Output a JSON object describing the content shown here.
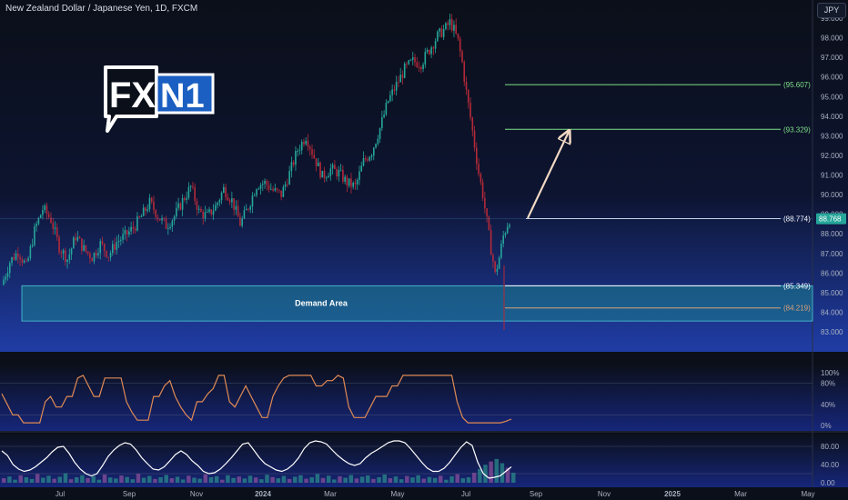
{
  "header": {
    "title": "New Zealand Dollar / Japanese Yen, 1D, FXCM",
    "currency_button": "JPY"
  },
  "logo": {
    "text_left": "FX",
    "text_right": "N1"
  },
  "annotations": {
    "zone_label": "Demand Area"
  },
  "colors": {
    "background": "#0b0f19",
    "gradient_bottom": "#1f3da6",
    "bull": "#26a69a",
    "bear": "#b52a3a",
    "zone_fill": "#1b7f8f",
    "level_green": "#7ee08a",
    "level_white": "#ffffff",
    "level_orange": "#d9a07c",
    "osc1_line": "#e08a54",
    "osc2_line": "#ffffff",
    "logo_blue": "#1b5fc2"
  },
  "chart_data": [
    {
      "type": "candlestick",
      "title": "New Zealand Dollar / Japanese Yen, 1D, FXCM",
      "x_tick_labels": [
        "Jul",
        "Sep",
        "Nov",
        "2024",
        "Mar",
        "May",
        "Jul",
        "Sep",
        "Nov",
        "2025",
        "Mar",
        "May"
      ],
      "y_tick_labels": [
        "99.000",
        "98.000",
        "97.000",
        "96.000",
        "95.000",
        "94.000",
        "93.000",
        "92.000",
        "91.000",
        "90.000",
        "89.000",
        "88.000",
        "87.000",
        "86.000",
        "85.000",
        "84.000",
        "83.000"
      ],
      "ylim": [
        82.6,
        99.8
      ],
      "price_path": [
        [
          0,
          85.4
        ],
        [
          4,
          86.6
        ],
        [
          8,
          87.1
        ],
        [
          12,
          86.3
        ],
        [
          16,
          88.2
        ],
        [
          20,
          89.3
        ],
        [
          24,
          88.7
        ],
        [
          28,
          87.3
        ],
        [
          32,
          86.7
        ],
        [
          36,
          87.9
        ],
        [
          40,
          87.2
        ],
        [
          44,
          86.8
        ],
        [
          48,
          87.5
        ],
        [
          52,
          86.9
        ],
        [
          56,
          87.6
        ],
        [
          60,
          87.9
        ],
        [
          64,
          88.3
        ],
        [
          68,
          88.9
        ],
        [
          72,
          89.6
        ],
        [
          76,
          88.9
        ],
        [
          80,
          88.4
        ],
        [
          84,
          88.9
        ],
        [
          88,
          89.7
        ],
        [
          92,
          90.4
        ],
        [
          96,
          89.1
        ],
        [
          100,
          88.9
        ],
        [
          104,
          89.4
        ],
        [
          108,
          90.3
        ],
        [
          112,
          89.7
        ],
        [
          116,
          88.5
        ],
        [
          120,
          89.4
        ],
        [
          124,
          90.5
        ],
        [
          128,
          90.6
        ],
        [
          132,
          90.2
        ],
        [
          136,
          90.0
        ],
        [
          140,
          91.1
        ],
        [
          144,
          92.3
        ],
        [
          148,
          93.0
        ],
        [
          152,
          91.9
        ],
        [
          156,
          90.9
        ],
        [
          160,
          91.3
        ],
        [
          164,
          91.1
        ],
        [
          168,
          90.6
        ],
        [
          172,
          90.4
        ],
        [
          176,
          91.7
        ],
        [
          180,
          92.2
        ],
        [
          184,
          93.4
        ],
        [
          188,
          94.8
        ],
        [
          192,
          95.6
        ],
        [
          196,
          96.4
        ],
        [
          200,
          96.8
        ],
        [
          204,
          96.7
        ],
        [
          208,
          97.4
        ],
        [
          212,
          98.1
        ],
        [
          216,
          98.5
        ],
        [
          218,
          98.8
        ],
        [
          220,
          98.4
        ],
        [
          222,
          97.8
        ],
        [
          224,
          96.7
        ],
        [
          226,
          95.2
        ],
        [
          228,
          93.9
        ],
        [
          230,
          92.5
        ],
        [
          232,
          91.1
        ],
        [
          234,
          90.0
        ],
        [
          236,
          88.6
        ],
        [
          238,
          87.2
        ],
        [
          239,
          86.6
        ],
        [
          240,
          85.9
        ],
        [
          242,
          86.8
        ],
        [
          244,
          87.9
        ],
        [
          246,
          88.5
        ],
        [
          247,
          88.76
        ]
      ],
      "levels": [
        {
          "label": "(95.607)",
          "value": 95.607,
          "color": "#7ee08a"
        },
        {
          "label": "(93.329)",
          "value": 93.329,
          "color": "#7ee08a"
        },
        {
          "label": "(88.774)",
          "value": 88.774,
          "color": "#ffffff"
        },
        {
          "label": "(85.349)",
          "value": 85.349,
          "color": "#ffffff"
        },
        {
          "label": "(84.219)",
          "value": 84.219,
          "color": "#d9a07c"
        }
      ],
      "last_price_label": "88.768",
      "zone": {
        "label": "Demand Area",
        "from": 83.55,
        "to": 85.35
      },
      "arrow": {
        "from_value": 88.8,
        "to_value": 93.2
      }
    },
    {
      "type": "line",
      "name": "oscillator-1",
      "y_tick_labels": [
        "100%",
        "80%",
        "40%",
        "0%"
      ],
      "ylim": [
        0,
        100
      ],
      "levels": [
        80,
        20
      ],
      "series": [
        {
          "values": [
            60,
            40,
            20,
            20,
            5,
            5,
            5,
            5,
            45,
            55,
            35,
            35,
            55,
            55,
            90,
            95,
            75,
            55,
            55,
            90,
            90,
            90,
            90,
            45,
            25,
            10,
            10,
            10,
            55,
            55,
            75,
            85,
            55,
            35,
            20,
            10,
            45,
            45,
            60,
            70,
            95,
            95,
            45,
            35,
            55,
            75,
            55,
            35,
            15,
            15,
            55,
            75,
            90,
            95,
            95,
            95,
            95,
            95,
            75,
            75,
            85,
            85,
            95,
            90,
            35,
            15,
            15,
            15,
            35,
            55,
            55,
            55,
            75,
            75,
            95,
            95,
            95,
            95,
            95,
            95,
            95,
            95,
            95,
            95,
            45,
            15,
            5,
            5,
            5,
            5,
            5,
            5,
            5,
            8,
            12
          ]
        }
      ]
    },
    {
      "type": "line",
      "name": "oscillator-2",
      "y_tick_labels": [
        "80.00",
        "40.00",
        "0.00"
      ],
      "ylim": [
        0,
        100
      ],
      "levels": [
        80,
        20
      ],
      "series": [
        {
          "values": [
            70,
            60,
            40,
            30,
            25,
            28,
            35,
            45,
            55,
            68,
            78,
            80,
            65,
            45,
            30,
            20,
            15,
            20,
            38,
            58,
            72,
            82,
            88,
            85,
            72,
            55,
            42,
            30,
            28,
            35,
            48,
            62,
            70,
            62,
            48,
            38,
            25,
            20,
            22,
            30,
            42,
            55,
            70,
            85,
            88,
            72,
            55,
            42,
            35,
            28,
            25,
            30,
            40,
            55,
            75,
            88,
            92,
            90,
            85,
            72,
            60,
            50,
            42,
            38,
            42,
            55,
            65,
            72,
            80,
            88,
            92,
            92,
            88,
            75,
            60,
            45,
            32,
            25,
            25,
            32,
            45,
            62,
            78,
            90,
            82,
            45,
            20,
            10,
            12,
            15,
            25,
            35
          ]
        }
      ],
      "volume_bars": [
        18,
        25,
        12,
        30,
        22,
        15,
        35,
        20,
        28,
        16,
        24,
        38,
        14,
        22,
        30,
        19,
        26,
        12,
        33,
        21,
        17,
        29,
        23,
        14,
        36,
        20,
        27,
        15,
        22,
        31,
        18,
        24,
        13,
        28,
        20,
        16,
        34,
        22,
        26,
        12,
        30,
        19,
        25,
        17,
        28,
        21,
        14,
        32,
        23,
        18,
        27,
        15,
        24,
        30,
        16,
        22,
        35,
        19,
        28,
        13,
        26,
        20,
        31,
        17,
        24,
        29,
        15,
        22,
        33,
        18,
        25,
        14,
        27,
        21,
        30,
        16,
        23,
        19,
        28,
        12,
        26,
        34,
        18,
        22,
        40,
        55,
        72,
        85,
        95,
        78,
        60,
        40
      ]
    }
  ]
}
